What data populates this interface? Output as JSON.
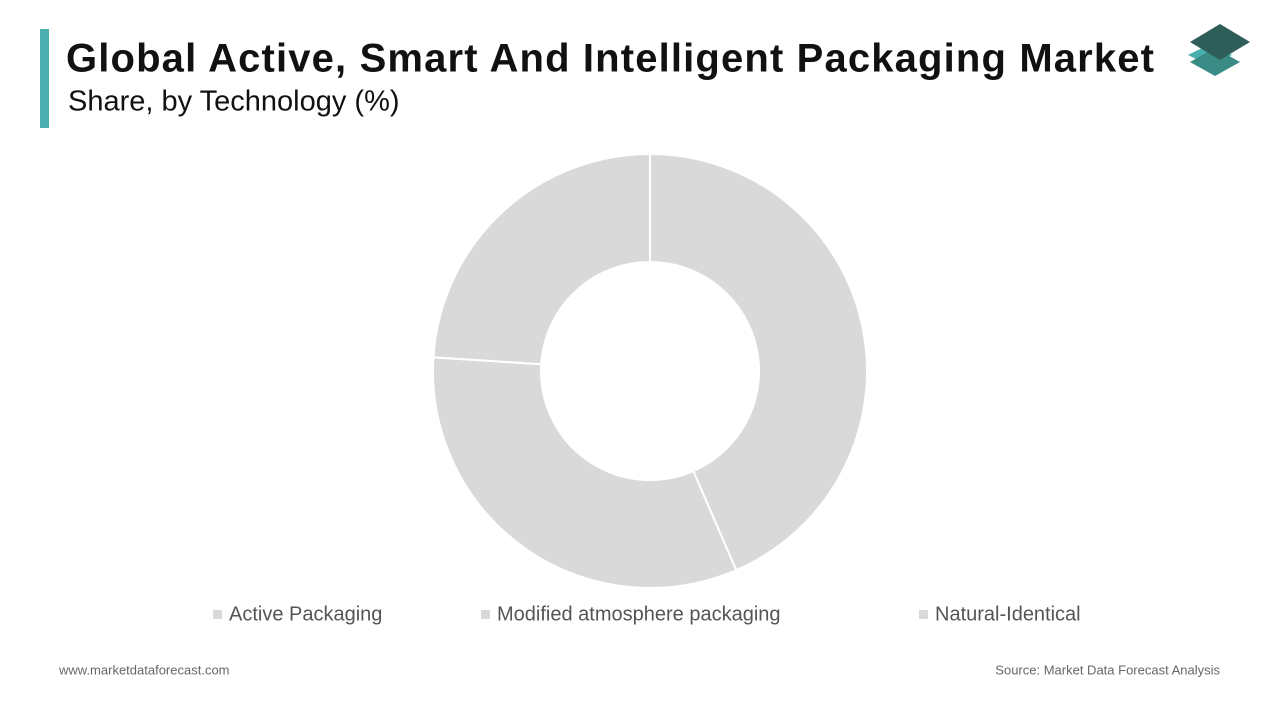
{
  "chart_data": {
    "type": "donut",
    "title": "Global Active, Smart And Intelligent Packaging Market",
    "subtitle": "Share, by Technology (%)",
    "categories": [
      "Active Packaging",
      "Modified atmosphere packaging",
      "Natural-Identical"
    ],
    "values": [
      43.5,
      32.5,
      24
    ],
    "color": "#d9d9d9",
    "footer_left": "www.marketdataforecast.com",
    "footer_right": "Source: Market Data Forecast Analysis"
  }
}
